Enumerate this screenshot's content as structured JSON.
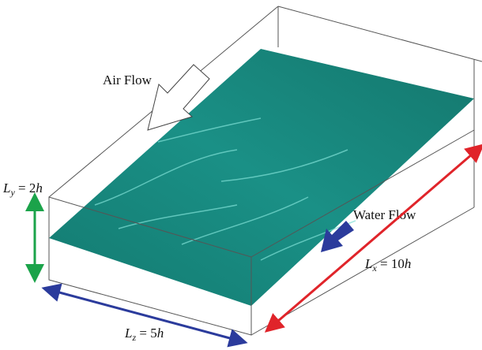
{
  "labels": {
    "air_flow": "Air Flow",
    "water_flow": "Water Flow",
    "ly": {
      "symbol": "L",
      "subscript": "y",
      "equals": " = 2",
      "unit": "h"
    },
    "lx": {
      "symbol": "L",
      "subscript": "x",
      "equals": " = 10",
      "unit": "h"
    },
    "lz": {
      "symbol": "L",
      "subscript": "z",
      "equals": " = 5",
      "unit": "h"
    }
  }
}
